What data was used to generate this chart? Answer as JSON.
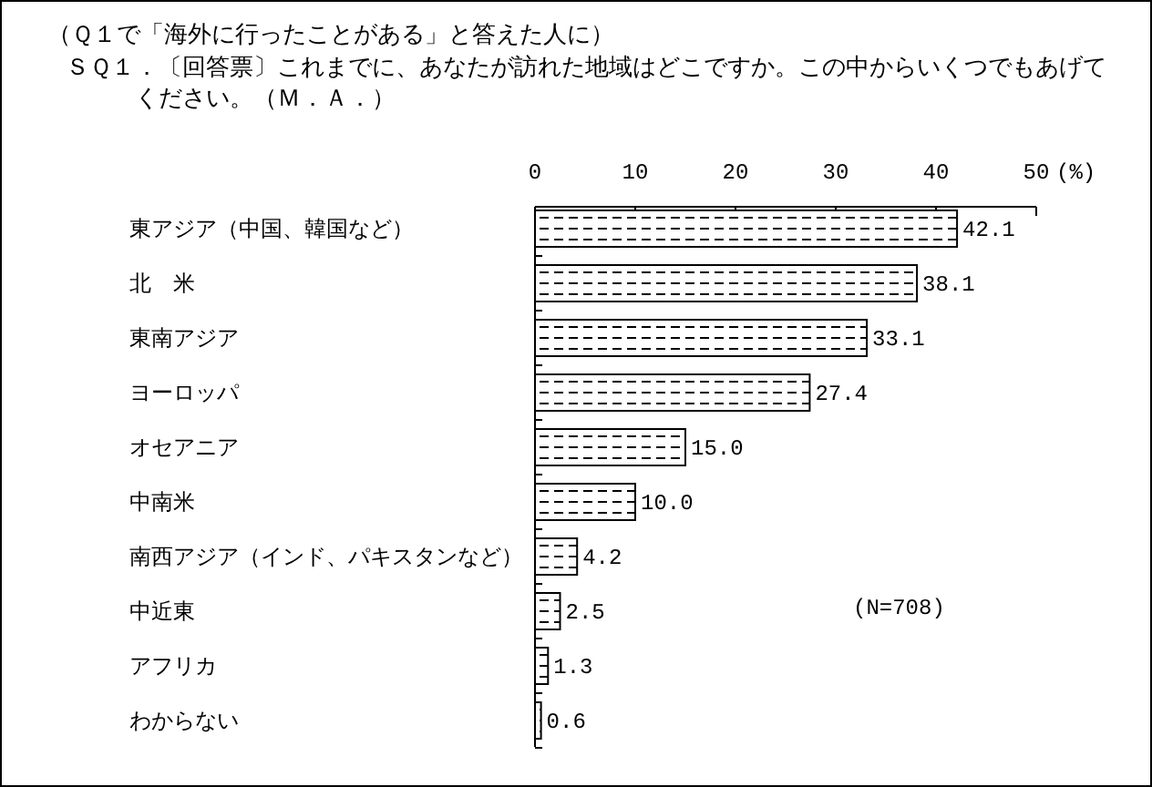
{
  "chart_data": {
    "type": "bar",
    "orientation": "horizontal",
    "title": "（Ｑ１で「海外に行ったことがある」と答えた人に）",
    "subtitle": "ＳＱ１．〔回答票〕これまでに、あなたが訪れた地域はどこですか。この中からいくつでもあげてください。（Ｍ．Ａ．）",
    "xlabel": "(%)",
    "categories": [
      "東アジア（中国、韓国など）",
      "北　米",
      "東南アジア",
      "ヨーロッパ",
      "オセアニア",
      "中南米",
      "南西アジア（インド、パキスタンなど）",
      "中近東",
      "アフリカ",
      "わからない"
    ],
    "values": [
      42.1,
      38.1,
      33.1,
      27.4,
      15.0,
      10.0,
      4.2,
      2.5,
      1.3,
      0.6
    ],
    "value_labels": [
      "42.1",
      "38.1",
      "33.1",
      "27.4",
      "15.0",
      "10.0",
      "4.2",
      "2.5",
      "1.3",
      "0.6"
    ],
    "color": "#000000",
    "xlim": [
      0,
      50
    ],
    "xticks": [
      0,
      10,
      20,
      30,
      40,
      50
    ],
    "annotations": [
      "(N=708)"
    ]
  }
}
